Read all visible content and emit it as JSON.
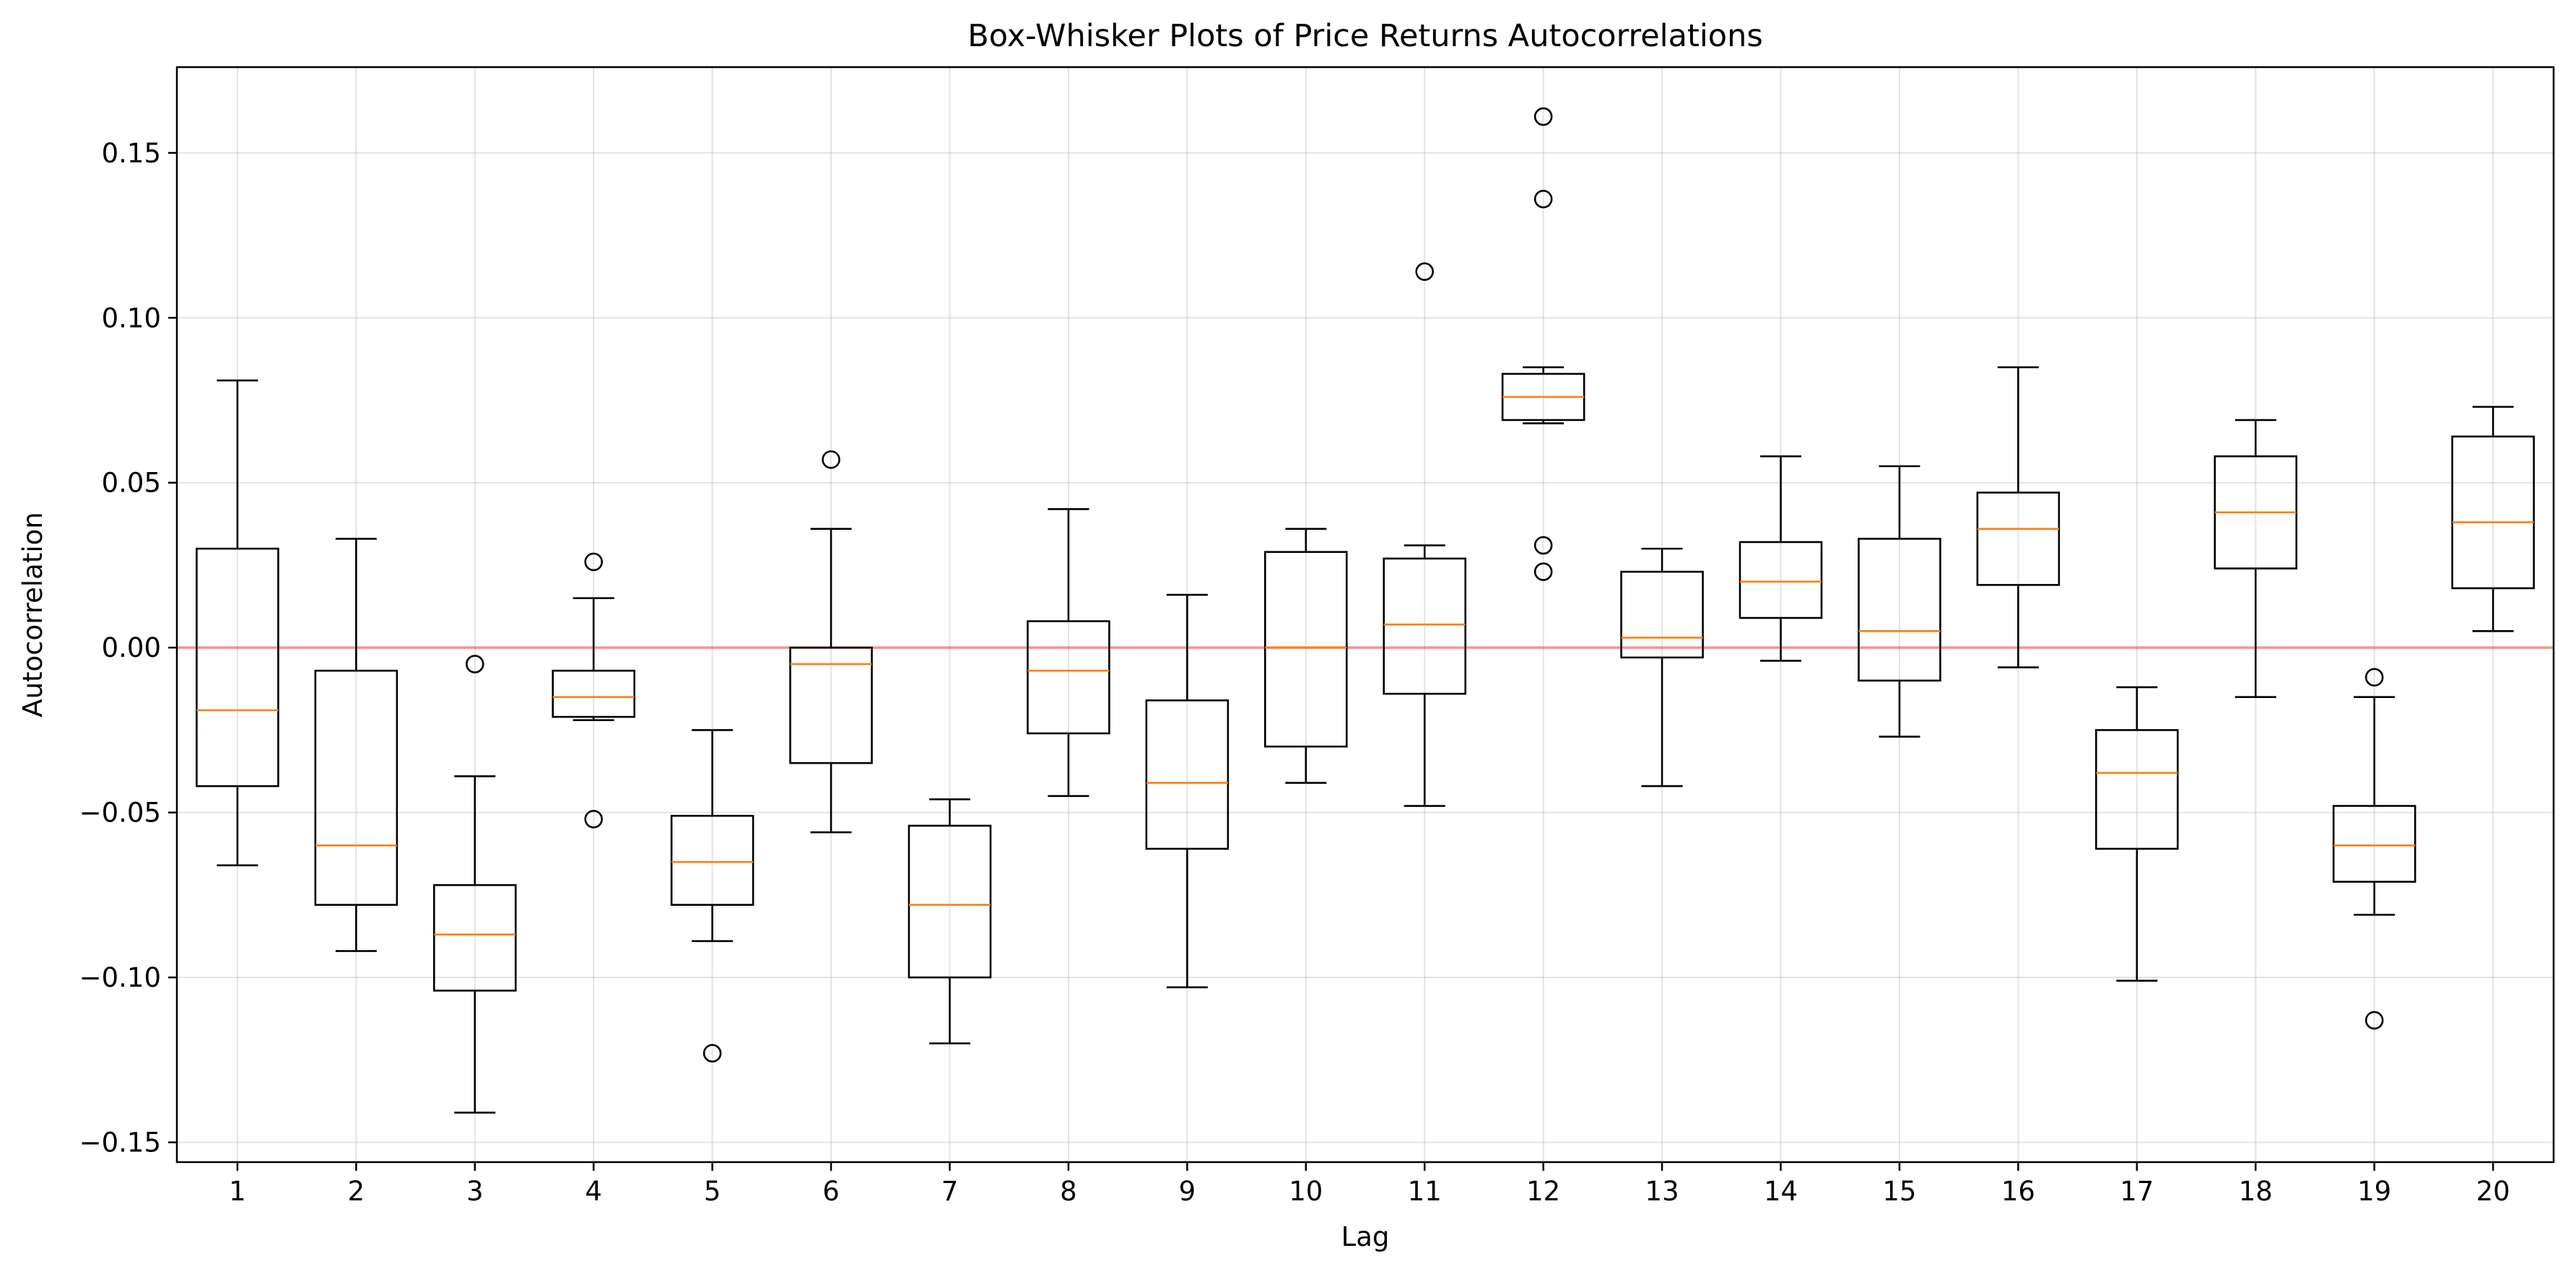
{
  "chart_data": {
    "type": "boxplot",
    "title": "Box-Whisker Plots of Price Returns Autocorrelations",
    "xlabel": "Lag",
    "ylabel": "Autocorrelation",
    "ylim": [
      -0.156,
      0.176
    ],
    "yticks": [
      -0.15,
      -0.1,
      -0.05,
      0.0,
      0.05,
      0.1,
      0.15
    ],
    "ytick_labels": [
      "−0.15",
      "−0.10",
      "−0.05",
      "0.00",
      "0.05",
      "0.10",
      "0.15"
    ],
    "grid": true,
    "reference_line": {
      "y": 0.0,
      "color": "#ff0000"
    },
    "colors": {
      "box": "#000000",
      "median": "#ff7f0e",
      "reference": "#ff0000"
    },
    "boxes": [
      {
        "label": "1",
        "whislo": -0.066,
        "q1": -0.042,
        "med": -0.019,
        "q3": 0.03,
        "whishi": 0.081,
        "fliers": []
      },
      {
        "label": "2",
        "whislo": -0.092,
        "q1": -0.078,
        "med": -0.06,
        "q3": -0.007,
        "whishi": 0.033,
        "fliers": []
      },
      {
        "label": "3",
        "whislo": -0.141,
        "q1": -0.104,
        "med": -0.087,
        "q3": -0.072,
        "whishi": -0.039,
        "fliers": [
          -0.005
        ]
      },
      {
        "label": "4",
        "whislo": -0.022,
        "q1": -0.021,
        "med": -0.015,
        "q3": -0.007,
        "whishi": 0.015,
        "fliers": [
          0.026,
          -0.052
        ]
      },
      {
        "label": "5",
        "whislo": -0.089,
        "q1": -0.078,
        "med": -0.065,
        "q3": -0.051,
        "whishi": -0.025,
        "fliers": [
          -0.123
        ]
      },
      {
        "label": "6",
        "whislo": -0.056,
        "q1": -0.035,
        "med": -0.005,
        "q3": 0.0,
        "whishi": 0.036,
        "fliers": [
          0.057
        ]
      },
      {
        "label": "7",
        "whislo": -0.12,
        "q1": -0.1,
        "med": -0.078,
        "q3": -0.054,
        "whishi": -0.046,
        "fliers": []
      },
      {
        "label": "8",
        "whislo": -0.045,
        "q1": -0.026,
        "med": -0.007,
        "q3": 0.008,
        "whishi": 0.042,
        "fliers": []
      },
      {
        "label": "9",
        "whislo": -0.103,
        "q1": -0.061,
        "med": -0.041,
        "q3": -0.016,
        "whishi": 0.016,
        "fliers": []
      },
      {
        "label": "10",
        "whislo": -0.041,
        "q1": -0.03,
        "med": 0.0,
        "q3": 0.029,
        "whishi": 0.036,
        "fliers": []
      },
      {
        "label": "11",
        "whislo": -0.048,
        "q1": -0.014,
        "med": 0.007,
        "q3": 0.027,
        "whishi": 0.031,
        "fliers": [
          0.114
        ]
      },
      {
        "label": "12",
        "whislo": 0.068,
        "q1": 0.069,
        "med": 0.076,
        "q3": 0.083,
        "whishi": 0.085,
        "fliers": [
          0.161,
          0.136,
          0.031,
          0.023
        ]
      },
      {
        "label": "13",
        "whislo": -0.042,
        "q1": -0.003,
        "med": 0.003,
        "q3": 0.023,
        "whishi": 0.03,
        "fliers": []
      },
      {
        "label": "14",
        "whislo": -0.004,
        "q1": 0.009,
        "med": 0.02,
        "q3": 0.032,
        "whishi": 0.058,
        "fliers": []
      },
      {
        "label": "15",
        "whislo": -0.027,
        "q1": -0.01,
        "med": 0.005,
        "q3": 0.033,
        "whishi": 0.055,
        "fliers": []
      },
      {
        "label": "16",
        "whislo": -0.006,
        "q1": 0.019,
        "med": 0.036,
        "q3": 0.047,
        "whishi": 0.085,
        "fliers": []
      },
      {
        "label": "17",
        "whislo": -0.101,
        "q1": -0.061,
        "med": -0.038,
        "q3": -0.025,
        "whishi": -0.012,
        "fliers": []
      },
      {
        "label": "18",
        "whislo": -0.015,
        "q1": 0.024,
        "med": 0.041,
        "q3": 0.058,
        "whishi": 0.069,
        "fliers": []
      },
      {
        "label": "19",
        "whislo": -0.081,
        "q1": -0.071,
        "med": -0.06,
        "q3": -0.048,
        "whishi": -0.015,
        "fliers": [
          -0.009,
          -0.113
        ]
      },
      {
        "label": "20",
        "whislo": 0.005,
        "q1": 0.018,
        "med": 0.038,
        "q3": 0.064,
        "whishi": 0.073,
        "fliers": []
      }
    ]
  }
}
